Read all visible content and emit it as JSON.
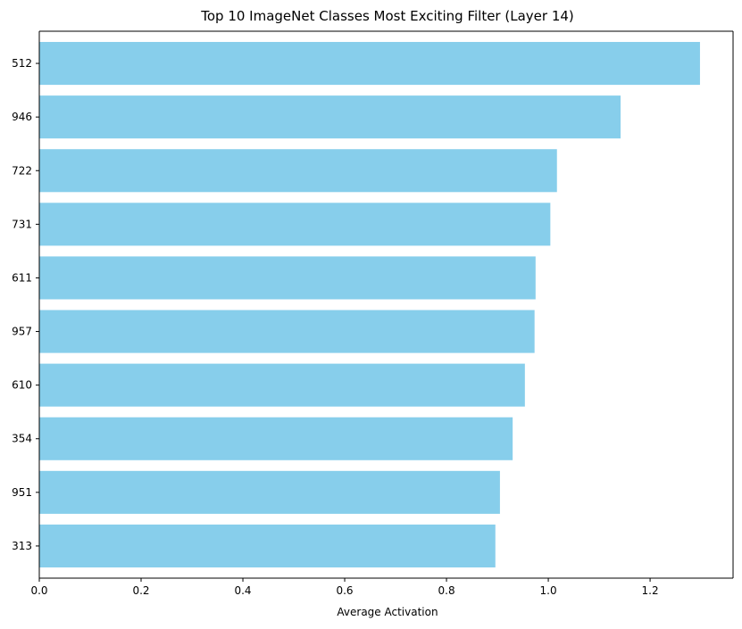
{
  "chart_data": {
    "type": "bar",
    "orientation": "horizontal",
    "title": "Top 10 ImageNet Classes Most Exciting Filter (Layer 14)",
    "xlabel": "Average Activation",
    "ylabel": "",
    "categories": [
      "512",
      "946",
      "722",
      "731",
      "611",
      "957",
      "610",
      "354",
      "951",
      "313"
    ],
    "values": [
      1.298,
      1.142,
      1.017,
      1.004,
      0.975,
      0.973,
      0.954,
      0.93,
      0.905,
      0.896
    ],
    "xlim": [
      0,
      1.363
    ],
    "xticks": [
      0.0,
      0.2,
      0.4,
      0.6,
      0.8,
      1.0,
      1.2
    ],
    "xtick_labels": [
      "0.0",
      "0.2",
      "0.4",
      "0.6",
      "0.8",
      "1.0",
      "1.2"
    ],
    "bar_color": "#87CEEB",
    "grid": false,
    "legend": "none"
  }
}
